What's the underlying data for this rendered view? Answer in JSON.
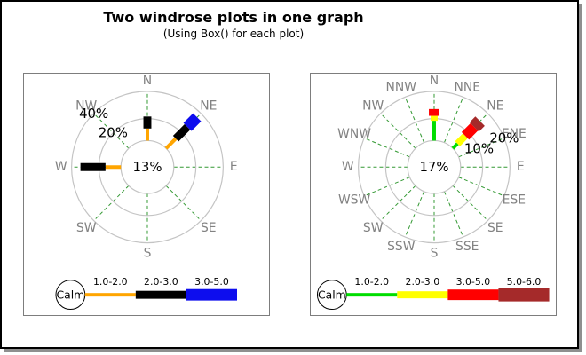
{
  "header": {
    "title": "Two windrose plots in one graph",
    "subtitle": "(Using Box() for each plot)"
  },
  "palette": {
    "grid_color": "#c4c4c4",
    "spoke_color": "#339933",
    "direction_label_color": "#828282",
    "text_color": "#000000",
    "box_border_color": "#7d7d7d",
    "frame_border_color": "#000000",
    "frame_shadow_color": "#8f8f8f",
    "background": "#ffffff"
  },
  "chart_data": [
    {
      "type": "windrose",
      "compass_points": [
        "N",
        "NE",
        "E",
        "SE",
        "S",
        "SW",
        "W",
        "NW"
      ],
      "calm_label": "13%",
      "calm_value_pct": 13,
      "rings": [
        {
          "pct": 20,
          "label": "20%"
        },
        {
          "pct": 40,
          "label": "40%"
        }
      ],
      "ring_label_direction": "NW",
      "legend": {
        "calm_text": "Calm",
        "bins": [
          {
            "range": "1.0-2.0",
            "color": "#ffa500",
            "thickness": 4
          },
          {
            "range": "2.0-3.0",
            "color": "#000000",
            "thickness": 9
          },
          {
            "range": "3.0-5.0",
            "color": "#0d0dee",
            "thickness": 13
          }
        ]
      },
      "petals": [
        {
          "direction": "N",
          "segments": [
            {
              "bin": "1.0-2.0",
              "from_pct": 0,
              "to_pct": 11
            },
            {
              "bin": "2.0-3.0",
              "from_pct": 11,
              "to_pct": 21.5
            }
          ]
        },
        {
          "direction": "NE",
          "segments": [
            {
              "bin": "1.0-2.0",
              "from_pct": 0,
              "to_pct": 12.5
            },
            {
              "bin": "2.0-3.0",
              "from_pct": 12.5,
              "to_pct": 26
            },
            {
              "bin": "3.0-5.0",
              "from_pct": 26,
              "to_pct": 36
            }
          ]
        },
        {
          "direction": "W",
          "segments": [
            {
              "bin": "1.0-2.0",
              "from_pct": 0,
              "to_pct": 14
            },
            {
              "bin": "2.0-3.0",
              "from_pct": 14,
              "to_pct": 33.5
            }
          ]
        }
      ]
    },
    {
      "type": "windrose",
      "compass_points": [
        "N",
        "NNE",
        "NE",
        "ENE",
        "E",
        "ESE",
        "SE",
        "SSE",
        "S",
        "SSW",
        "SW",
        "WSW",
        "W",
        "WNW",
        "NW",
        "NNW"
      ],
      "calm_label": "17%",
      "calm_value_pct": 17,
      "rings": [
        {
          "pct": 10,
          "label": "10%"
        },
        {
          "pct": 20,
          "label": "20%"
        }
      ],
      "ring_label_direction": "ENE",
      "legend": {
        "calm_text": "Calm",
        "bins": [
          {
            "range": "1.0-2.0",
            "color": "#00dd00",
            "thickness": 4
          },
          {
            "range": "2.0-3.0",
            "color": "#ffff00",
            "thickness": 8
          },
          {
            "range": "3.0-5.0",
            "color": "#ff0000",
            "thickness": 12
          },
          {
            "range": "5.0-6.0",
            "color": "#a52a2a",
            "thickness": 15
          }
        ]
      },
      "petals": [
        {
          "direction": "N",
          "segments": [
            {
              "bin": "1.0-2.0",
              "from_pct": 0,
              "to_pct": 9
            },
            {
              "bin": "2.0-3.0",
              "from_pct": 9,
              "to_pct": 11
            },
            {
              "bin": "3.0-5.0",
              "from_pct": 11,
              "to_pct": 13.5
            }
          ]
        },
        {
          "direction": "NE",
          "segments": [
            {
              "bin": "1.0-2.0",
              "from_pct": 0,
              "to_pct": 3
            },
            {
              "bin": "2.0-3.0",
              "from_pct": 3,
              "to_pct": 8
            },
            {
              "bin": "3.0-5.0",
              "from_pct": 8,
              "to_pct": 13
            },
            {
              "bin": "5.0-6.0",
              "from_pct": 13,
              "to_pct": 16
            }
          ]
        }
      ]
    }
  ]
}
